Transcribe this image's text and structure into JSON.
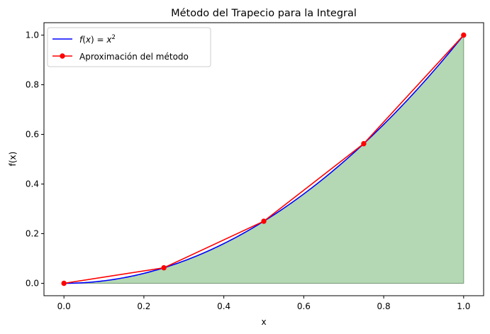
{
  "chart_data": {
    "type": "line",
    "title": "Método del Trapecio para la Integral",
    "xlabel": "x",
    "ylabel": "f(x)",
    "xlim": [
      -0.05,
      1.05
    ],
    "ylim": [
      -0.05,
      1.05
    ],
    "xticks": [
      0.0,
      0.2,
      0.4,
      0.6,
      0.8,
      1.0
    ],
    "xtick_labels": [
      "0.0",
      "0.2",
      "0.4",
      "0.6",
      "0.8",
      "1.0"
    ],
    "yticks": [
      0.0,
      0.2,
      0.4,
      0.6,
      0.8,
      1.0
    ],
    "ytick_labels": [
      "0.0",
      "0.2",
      "0.4",
      "0.6",
      "0.8",
      "1.0"
    ],
    "grid": false,
    "legend_position": "top-left",
    "fill_area": {
      "description_source": "shaded area under the curve from x=0 to x=1",
      "color": "#b3d8b3"
    },
    "series": [
      {
        "name": "f(x) = x²",
        "legend_label_parts": [
          "f",
          "(",
          "x",
          ") = ",
          "x",
          "2"
        ],
        "kind": "curve",
        "function": "x^2",
        "x_range": [
          0,
          1
        ],
        "color": "#0000ff"
      },
      {
        "name": "Aproximación del método",
        "kind": "line-with-markers",
        "x": [
          0.0,
          0.25,
          0.5,
          0.75,
          1.0
        ],
        "y": [
          0.0,
          0.0625,
          0.25,
          0.5625,
          1.0
        ],
        "color": "#ff0000"
      }
    ]
  }
}
